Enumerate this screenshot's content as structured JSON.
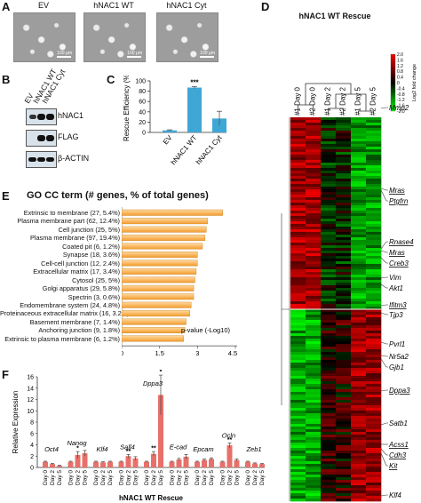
{
  "panels": {
    "A": "A",
    "B": "B",
    "C": "C",
    "D": "D",
    "E": "E",
    "F": "F"
  },
  "panel_a": {
    "labels": [
      "EV",
      "hNAC1 WT",
      "hNAC1 Cyt"
    ],
    "scale_bar": "100 μm"
  },
  "panel_b": {
    "columns": [
      "EV",
      "hNAC1 WT",
      "hNAC1 Cyt"
    ],
    "rows": [
      "hNAC1",
      "FLAG",
      "β-ACTIN"
    ]
  },
  "panel_d": {
    "title": "hNAC1 WT Rescue",
    "columns": [
      "#1 Day 0",
      "#2 Day 0",
      "#1 Day 2",
      "#2 Day 2",
      "#1 Day 5",
      "#2 Day 5"
    ],
    "colorbar_label": "Log2 fold change",
    "colorbar_ticks": [
      "2.0",
      "1.6",
      "1.2",
      "0.8",
      "0.4",
      "0",
      "-0.4",
      "-0.8",
      "-1.2",
      "-1.6",
      "-2.0"
    ],
    "genes": [
      {
        "name": "Mmp2",
        "underline": false
      },
      {
        "name": "Mras",
        "underline": true
      },
      {
        "name": "Ptgfrn",
        "underline": true
      },
      {
        "name": "Rnase4",
        "underline": true
      },
      {
        "name": "Mras",
        "underline": true
      },
      {
        "name": "Creb3",
        "underline": true
      },
      {
        "name": "Vim",
        "underline": false
      },
      {
        "name": "Akt1",
        "underline": false
      },
      {
        "name": "Ifitm3",
        "underline": true
      },
      {
        "name": "Tjp3",
        "underline": false
      },
      {
        "name": "Pvrl1",
        "underline": false
      },
      {
        "name": "Nr5a2",
        "underline": false
      },
      {
        "name": "Gjb1",
        "underline": false
      },
      {
        "name": "Dppa3",
        "underline": true
      },
      {
        "name": "Satb1",
        "underline": false
      },
      {
        "name": "Acss1",
        "underline": true
      },
      {
        "name": "Cdh3",
        "underline": true
      },
      {
        "name": "Kit",
        "underline": true
      },
      {
        "name": "Klf4",
        "underline": false
      }
    ]
  },
  "chart_data": [
    {
      "type": "bar",
      "panel": "C",
      "categories": [
        "EV",
        "hNAC1 WT",
        "hNAC1 Cyt"
      ],
      "values": [
        4,
        87,
        27
      ],
      "errors": [
        1,
        2,
        14
      ],
      "ylabel": "Rescue Efficiency (%)",
      "ylim": [
        0,
        100
      ],
      "yticks": [
        "0",
        "20",
        "40",
        "60",
        "80",
        "100"
      ],
      "annotation": "***",
      "color": "#3fa7d6"
    },
    {
      "type": "bar",
      "panel": "E",
      "orientation": "horizontal",
      "title": "GO CC term (# genes, % of total genes)",
      "categories": [
        "Extrinsic to membrane (27, 5.4%)",
        "Plasma membrane part (62, 12.4%)",
        "Cell junction (25, 5%)",
        "Plasma membrane (97, 19.4%)",
        "Coated pit (6, 1.2%)",
        "Synapse (18, 3.6%)",
        "Cell-cell junction (12, 2.4%)",
        "Extracellular matrix (17, 3.4%)",
        "Cytosol (25, 5%)",
        "Golgi apparatus (29, 5.8%)",
        "Spectrin (3, 0.6%)",
        "Endomembrane system (24, 4.8%)",
        "Proteinaceous extracellular matrix (16, 3.2%)",
        "Basement membrane (7, 1.4%)",
        "Anchoring junction (9, 1.8%)",
        "Extrinsic to plasma membrane (6, 1.2%)"
      ],
      "values": [
        4.0,
        3.4,
        3.35,
        3.3,
        3.2,
        3.0,
        3.0,
        2.95,
        2.9,
        2.85,
        2.85,
        2.75,
        2.7,
        2.55,
        2.5,
        2.45
      ],
      "xlabel": "p-value (-Log10)",
      "xlim": [
        0,
        4.5
      ],
      "xticks": [
        "0",
        "1.5",
        "3",
        "4.5"
      ],
      "color": "#f39c2c"
    },
    {
      "type": "bar",
      "panel": "F",
      "ylabel": "Relative Expression",
      "xlabel": "hNAC1 WT Rescue",
      "ylim": [
        0,
        16
      ],
      "yticks": [
        "0",
        "2",
        "4",
        "6",
        "8",
        "10",
        "12",
        "14",
        "16"
      ],
      "groups": [
        {
          "gene": "Oct4",
          "days": [
            "Day 0",
            "Day 2",
            "Day 5"
          ],
          "values": [
            1.0,
            0.6,
            0.3
          ],
          "errors": [
            0.1,
            0.1,
            0.1
          ],
          "stars": [
            "",
            "",
            ""
          ]
        },
        {
          "gene": "Nanog",
          "days": [
            "Day 0",
            "Day 2",
            "Day 5"
          ],
          "values": [
            1.0,
            2.2,
            2.5
          ],
          "errors": [
            0.1,
            0.6,
            0.5
          ],
          "stars": [
            "",
            "*",
            ""
          ]
        },
        {
          "gene": "Klf4",
          "days": [
            "Day 0",
            "Day 2",
            "Day 5"
          ],
          "values": [
            1.0,
            0.9,
            1.0
          ],
          "errors": [
            0.1,
            0.1,
            0.1
          ],
          "stars": [
            "",
            "",
            ""
          ]
        },
        {
          "gene": "Sall4",
          "days": [
            "Day 0",
            "Day 2",
            "Day 5"
          ],
          "values": [
            1.0,
            2.0,
            1.6
          ],
          "errors": [
            0.1,
            0.3,
            0.3
          ],
          "stars": [
            "",
            "**",
            ""
          ]
        },
        {
          "gene": "Dppa3",
          "days": [
            "Day 0",
            "Day 2",
            "Day 5"
          ],
          "values": [
            1.0,
            2.4,
            12.8
          ],
          "errors": [
            0.1,
            0.4,
            3.5
          ],
          "stars": [
            "",
            "**",
            "*"
          ]
        },
        {
          "gene": "E-cad",
          "days": [
            "Day 0",
            "Day 2",
            "Day 5"
          ],
          "values": [
            1.0,
            1.4,
            1.9
          ],
          "errors": [
            0.1,
            0.2,
            0.4
          ],
          "stars": [
            "",
            "",
            ""
          ]
        },
        {
          "gene": "Epcam",
          "days": [
            "Day 0",
            "Day 2",
            "Day 5"
          ],
          "values": [
            1.0,
            1.3,
            1.5
          ],
          "errors": [
            0.1,
            0.2,
            0.2
          ],
          "stars": [
            "",
            "",
            ""
          ]
        },
        {
          "gene": "Ocln",
          "days": [
            "Day 0",
            "Day 2",
            "Day 5"
          ],
          "values": [
            1.0,
            3.9,
            1.3
          ],
          "errors": [
            0.1,
            0.4,
            0.2
          ],
          "stars": [
            "",
            "**",
            ""
          ]
        },
        {
          "gene": "Zeb1",
          "days": [
            "Day 0",
            "Day 2",
            "Day 5"
          ],
          "values": [
            1.0,
            0.7,
            0.6
          ],
          "errors": [
            0.1,
            0.1,
            0.1
          ],
          "stars": [
            "",
            "",
            ""
          ]
        }
      ],
      "color": "#e8706a"
    }
  ]
}
